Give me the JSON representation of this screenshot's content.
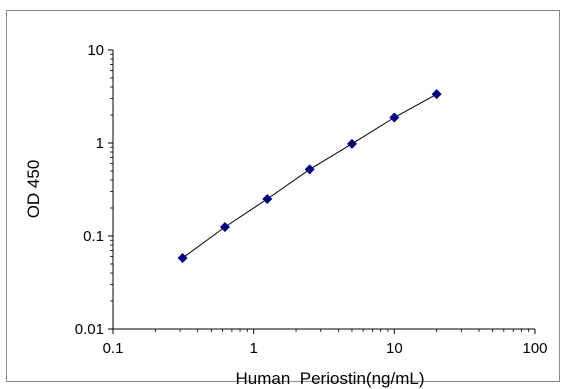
{
  "chart_data": {
    "type": "scatter",
    "title": "",
    "xlabel": "Human  Periostin(ng/mL)",
    "ylabel": "OD 450",
    "x_scale": "log",
    "y_scale": "log",
    "xlim": [
      0.1,
      100
    ],
    "ylim": [
      0.01,
      10
    ],
    "x_ticks": [
      "0.1",
      "1",
      "10",
      "100"
    ],
    "y_ticks": [
      "0.01",
      "0.1",
      "1",
      "10"
    ],
    "grid": false,
    "legend": "none",
    "series": [
      {
        "x": [
          0.3125,
          0.625,
          1.25,
          2.5,
          5,
          10,
          20
        ],
        "y": [
          0.058,
          0.125,
          0.25,
          0.52,
          0.98,
          1.88,
          3.35
        ],
        "marker": "diamond",
        "color": "#000080",
        "trendline": true,
        "trendline_color": "#000000"
      }
    ]
  }
}
